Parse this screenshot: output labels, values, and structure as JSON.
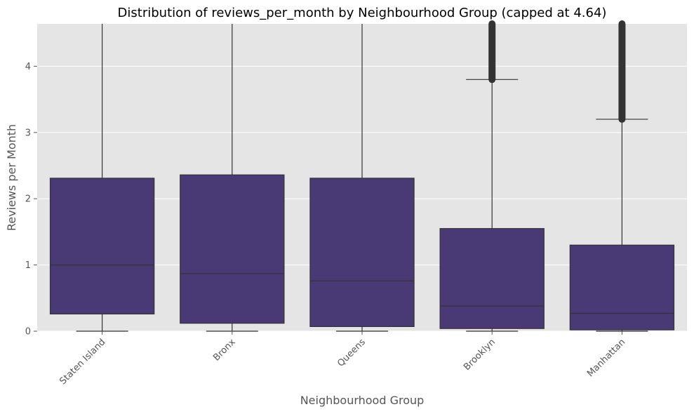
{
  "chart_data": {
    "type": "box",
    "title": "Distribution of reviews_per_month by Neighbourhood Group (capped at 4.64)",
    "xlabel": "Neighbourhood Group",
    "ylabel": "Reviews per Month",
    "ylim": [
      0,
      4.64
    ],
    "yticks": [
      0,
      1,
      2,
      3,
      4
    ],
    "grid": true,
    "colors": {
      "plot_background": "#e5e5e5",
      "grid": "#ffffff",
      "box_fill": "#493a75",
      "box_edge": "#333333",
      "outlier": "#333333"
    },
    "categories": [
      "Staten Island",
      "Bronx",
      "Queens",
      "Brooklyn",
      "Manhattan"
    ],
    "boxes": [
      {
        "group": "Staten Island",
        "min": 0.0,
        "q1": 0.26,
        "median": 1.0,
        "q3": 2.31,
        "max": 4.64,
        "outliers": []
      },
      {
        "group": "Bronx",
        "min": 0.0,
        "q1": 0.12,
        "median": 0.87,
        "q3": 2.36,
        "max": 4.64,
        "outliers": []
      },
      {
        "group": "Queens",
        "min": 0.0,
        "q1": 0.07,
        "median": 0.76,
        "q3": 2.31,
        "max": 4.64,
        "outliers": []
      },
      {
        "group": "Brooklyn",
        "min": 0.0,
        "q1": 0.04,
        "median": 0.38,
        "q3": 1.55,
        "max": 3.8,
        "outliers": [
          3.8,
          4.64
        ]
      },
      {
        "group": "Manhattan",
        "min": 0.0,
        "q1": 0.02,
        "median": 0.27,
        "q3": 1.3,
        "max": 3.2,
        "outliers": [
          3.2,
          4.64
        ]
      }
    ]
  }
}
